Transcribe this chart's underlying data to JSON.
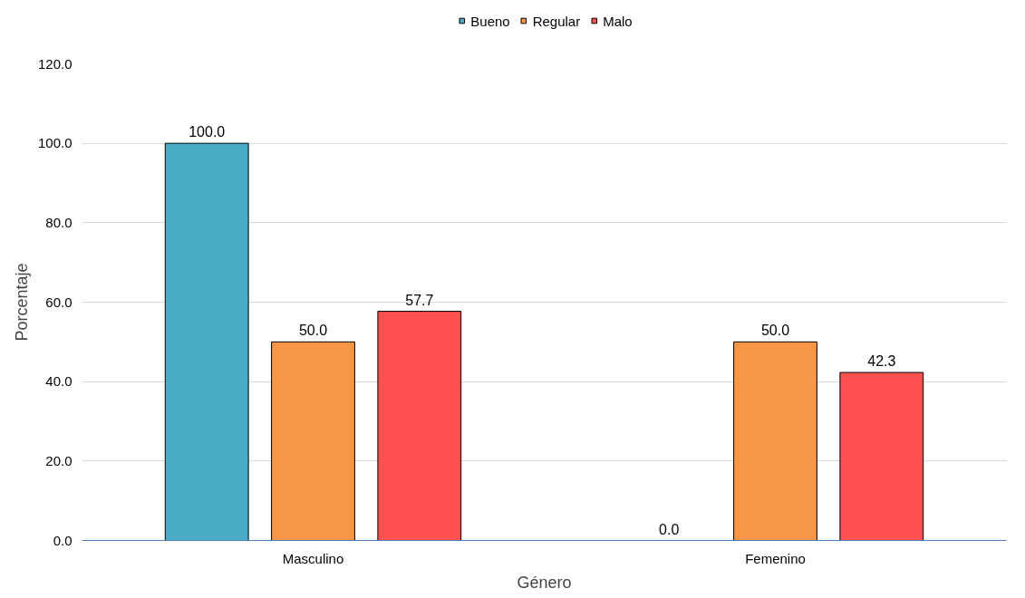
{
  "chart_data": {
    "type": "bar",
    "xlabel": "Género",
    "ylabel": "Porcentaje",
    "categories": [
      "Masculino",
      "Femenino"
    ],
    "series": [
      {
        "name": "Bueno",
        "color": "#4bacc6",
        "values": [
          100.0,
          0.0
        ],
        "value_labels": [
          "100.0",
          "0.0"
        ]
      },
      {
        "name": "Regular",
        "color": "#f79646",
        "values": [
          50.0,
          50.0
        ],
        "value_labels": [
          "50.0",
          "50.0"
        ]
      },
      {
        "name": "Malo",
        "color": "#ff5050",
        "values": [
          57.7,
          42.3
        ],
        "value_labels": [
          "57.7",
          "42.3"
        ]
      }
    ],
    "ylim": [
      0,
      120
    ],
    "yticks": [
      {
        "value": 0,
        "label": "0.0"
      },
      {
        "value": 20,
        "label": "20.0"
      },
      {
        "value": 40,
        "label": "40.0"
      },
      {
        "value": 60,
        "label": "60.0"
      },
      {
        "value": 80,
        "label": "80.0"
      },
      {
        "value": 100,
        "label": "100.0"
      },
      {
        "value": 120,
        "label": "120.0"
      }
    ],
    "grid": "y",
    "legend": "top"
  }
}
